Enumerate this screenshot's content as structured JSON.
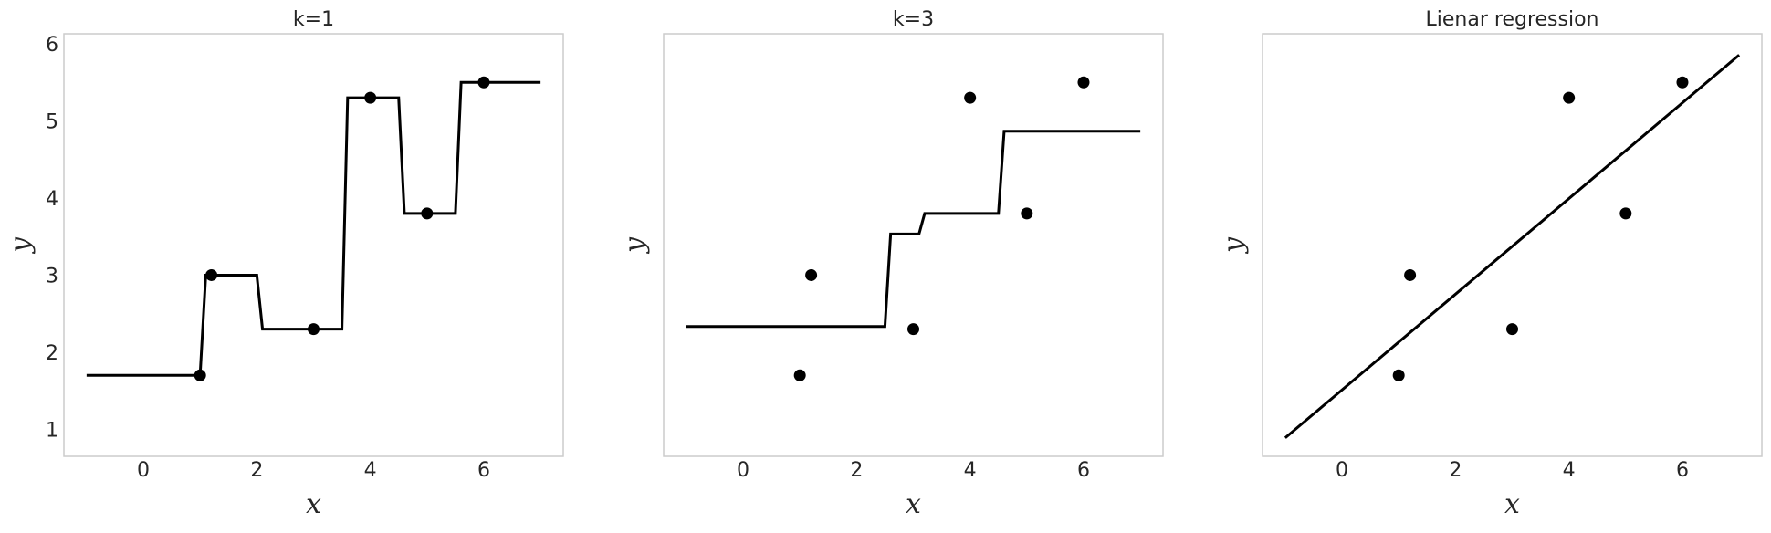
{
  "chart_data": [
    {
      "type": "line",
      "title": "k=1",
      "xlabel": "x",
      "ylabel": "y",
      "xlim": [
        -1.4,
        7.4
      ],
      "ylim": [
        0.65,
        6.13
      ],
      "xticks": [
        "0",
        "2",
        "4",
        "6"
      ],
      "yticks": [
        "1",
        "2",
        "3",
        "4",
        "5",
        "6"
      ],
      "show_yticks": true,
      "grid": false,
      "points": {
        "x": [
          1,
          1.2,
          3,
          4,
          5,
          6
        ],
        "y": [
          1.7,
          3.0,
          2.3,
          5.3,
          3.8,
          5.5
        ]
      },
      "model": "knn",
      "k": 1,
      "line_x_range": [
        -1,
        7
      ]
    },
    {
      "type": "line",
      "title": "k=3",
      "xlabel": "x",
      "ylabel": "y",
      "xlim": [
        -1.4,
        7.4
      ],
      "ylim": [
        0.65,
        6.13
      ],
      "xticks": [
        "0",
        "2",
        "4",
        "6"
      ],
      "yticks": [],
      "show_yticks": false,
      "grid": false,
      "points": {
        "x": [
          1,
          1.2,
          3,
          4,
          5,
          6
        ],
        "y": [
          1.7,
          3.0,
          2.3,
          5.3,
          3.8,
          5.5
        ]
      },
      "model": "knn",
      "k": 3,
      "line_x_range": [
        -1,
        7
      ]
    },
    {
      "type": "line",
      "title": "Lienar regression",
      "xlabel": "x",
      "ylabel": "y",
      "xlim": [
        -1.4,
        7.4
      ],
      "ylim": [
        0.65,
        6.13
      ],
      "xticks": [
        "0",
        "2",
        "4",
        "6"
      ],
      "yticks": [],
      "show_yticks": false,
      "grid": false,
      "points": {
        "x": [
          1,
          1.2,
          3,
          4,
          5,
          6
        ],
        "y": [
          1.7,
          3.0,
          2.3,
          5.3,
          3.8,
          5.5
        ]
      },
      "model": "linear",
      "line": {
        "x": [
          -1,
          7
        ],
        "y": [
          0.89,
          5.855
        ]
      }
    }
  ],
  "colors": {
    "line": "#000000",
    "points": "#000000",
    "spine": "#cccccc",
    "text": "#262626"
  }
}
